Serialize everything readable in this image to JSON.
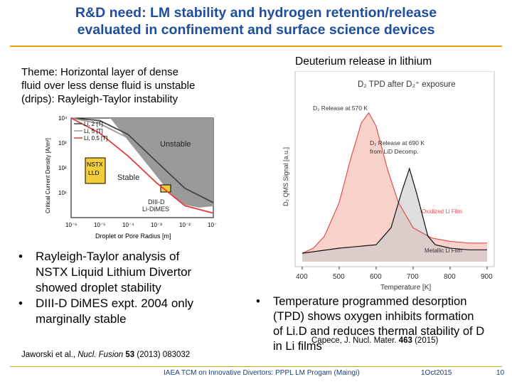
{
  "title": {
    "line1": "R&D need: LM stability and hydrogen retention/release",
    "line2": "evaluated in confinement and surface science devices"
  },
  "theme": {
    "line1": "Theme: Horizontal layer of dense",
    "line2": "fluid over less dense fluid is unstable",
    "line3": "(drips): Rayleigh-Taylor instability"
  },
  "right_heading": "Deuterium release in lithium",
  "bullets_left": [
    {
      "line1": "Rayleigh-Taylor analysis of",
      "line2": "NSTX Liquid Lithium Divertor",
      "line3": "showed droplet stability"
    },
    {
      "line1": "DIII-D DiMES expt. 2004 only",
      "line2": "marginally stable"
    }
  ],
  "bullets_right": [
    {
      "line1": "Temperature programmed desorption",
      "line2": "(TPD) shows oxygen inhibits formation",
      "line3": "of Li.D and reduces thermal stability of D",
      "line4": "in Li films"
    }
  ],
  "ref_left": {
    "authors": "Jaworski et al., ",
    "journal": "Nucl. Fusion",
    "vol": " 53",
    "rest": " (2013) 083032"
  },
  "ref_right": {
    "authors": "Capece, J. Nucl. Mater. ",
    "vol": "463",
    "rest": " (2015)"
  },
  "footer": {
    "left": "IAEA TCM on Innovative Divertors: PPPL LM Progam (Maingi)",
    "date": "1Oct2015",
    "page": "10"
  },
  "colors": {
    "title": "#1f4e9c",
    "accent_line": "#f0a000",
    "oxidized": "#f08070",
    "metallic": "#b0b0b0"
  },
  "chart_data": [
    {
      "type": "line",
      "title": "",
      "xlabel": "Droplet or Pore Radius [m]",
      "ylabel": "Critical Current Density [A/m²]",
      "xscale": "log",
      "yscale": "log",
      "xlim": [
        1e-06,
        0.1
      ],
      "ylim": [
        1,
        10000
      ],
      "x_ticks": [
        "10⁻⁶",
        "10⁻⁵",
        "10⁻⁴",
        "10⁻³",
        "10⁻²",
        "10⁻¹"
      ],
      "y_ticks": [
        "10¹",
        "10²",
        "10³",
        "10⁴"
      ],
      "series": [
        {
          "name": "Li, 2 [T]",
          "color": "#444444",
          "x": [
            1e-06,
            1e-05,
            0.0001,
            0.001,
            0.01,
            0.1
          ],
          "y": [
            10000,
            8000,
            2200,
            180,
            15,
            4
          ]
        },
        {
          "name": "Li, 5 [T]",
          "color": "#999999",
          "x": [
            1e-06,
            1e-05,
            0.0001,
            0.001,
            0.01,
            0.1
          ],
          "y": [
            10000,
            6000,
            1600,
            120,
            11,
            3
          ]
        },
        {
          "name": "Li, 0.5 [T]",
          "color": "#e23b3b",
          "x": [
            1e-06,
            1e-05,
            0.0001,
            0.001,
            0.01,
            0.1
          ],
          "y": [
            10000,
            2500,
            300,
            25,
            3,
            1.5
          ]
        }
      ],
      "annotations": {
        "unstable": "Unstable",
        "stable": "Stable",
        "nstx": "NSTX\nLLD",
        "diiid": "DIII-D\nLi-DiMES"
      }
    },
    {
      "type": "line",
      "title": "D₂ TPD after D₂⁺ exposure",
      "xlabel": "Temperature [K]",
      "ylabel": "D₂ QMS Signal [a.u.]",
      "xlim": [
        400,
        900
      ],
      "x_ticks": [
        400,
        500,
        600,
        700,
        800,
        900
      ],
      "series": [
        {
          "name": "Oxidized Li Film",
          "color": "#e05050",
          "x": [
            400,
            430,
            460,
            500,
            530,
            560,
            580,
            600,
            630,
            660,
            700,
            750,
            800,
            850,
            900
          ],
          "y": [
            0.05,
            0.08,
            0.15,
            0.35,
            0.6,
            0.82,
            0.88,
            0.8,
            0.55,
            0.35,
            0.2,
            0.14,
            0.12,
            0.11,
            0.11
          ]
        },
        {
          "name": "Metallic Li Film",
          "color": "#111111",
          "x": [
            400,
            500,
            600,
            640,
            670,
            690,
            710,
            740,
            760,
            800,
            850,
            900
          ],
          "y": [
            0.05,
            0.08,
            0.1,
            0.2,
            0.42,
            0.55,
            0.4,
            0.15,
            0.1,
            0.08,
            0.07,
            0.07
          ]
        }
      ],
      "annotations": {
        "peak1": "D₂ Release at 570 K",
        "peak2a": "D₂ Release at 690 K",
        "peak2b": "from LiD Decomp.",
        "oxidized": "Oxidized Li Film",
        "metallic": "Metallic Li Film"
      }
    }
  ]
}
